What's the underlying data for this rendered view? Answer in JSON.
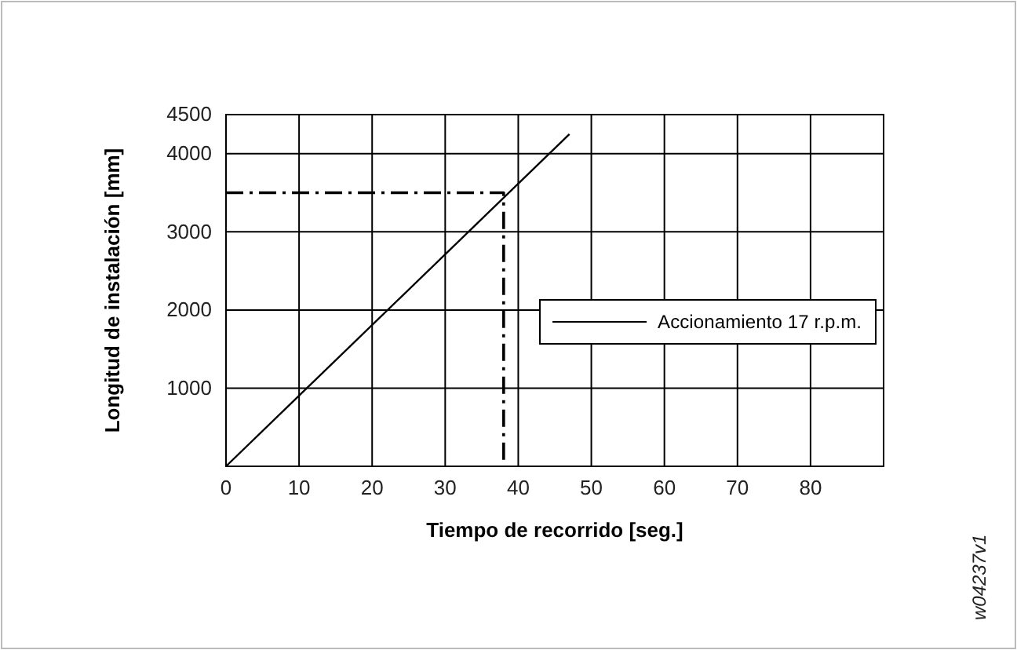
{
  "chart_data": {
    "type": "line",
    "xlabel": "Tiempo de recorrido [seg.]",
    "ylabel": "Longitud de instalación [mm]",
    "xlim": [
      0,
      90
    ],
    "xticks": [
      0,
      10,
      20,
      30,
      40,
      50,
      60,
      70,
      80
    ],
    "ylim": [
      0,
      4500
    ],
    "yticks": [
      1000,
      2000,
      3000,
      4000,
      4500
    ],
    "grid": true,
    "legend": "right",
    "marker": "none",
    "series": [
      {
        "name": "Accionamiento 17 r.p.m.",
        "color": "#000000",
        "x": [
          0,
          47
        ],
        "values": [
          0,
          4250
        ],
        "line_style": "solid"
      },
      {
        "color": "#000000",
        "x": [
          0,
          38,
          38
        ],
        "values": [
          3500,
          3500,
          0
        ],
        "line_style": "dashed"
      }
    ],
    "annotations": [
      "w04237v1"
    ]
  }
}
